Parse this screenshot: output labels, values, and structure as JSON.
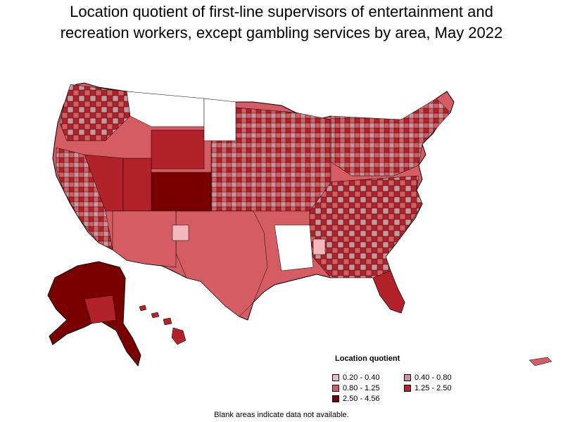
{
  "title_lines": [
    "Location quotient of first-line supervisors of entertainment and",
    "recreation workers, except gambling services by area, May 2022"
  ],
  "legend": {
    "title": "Location quotient",
    "items": [
      {
        "label": "0.20 - 0.40",
        "color": "#f4b8bc"
      },
      {
        "label": "0.40 - 0.80",
        "color": "#c8969b"
      },
      {
        "label": "0.80 - 1.25",
        "color": "#d45c62"
      },
      {
        "label": "1.25 - 2.50",
        "color": "#b3222a"
      },
      {
        "label": "2.50 - 4.56",
        "color": "#7a0000"
      }
    ]
  },
  "footnote": "Blank areas indicate data not available.",
  "colors": {
    "no_data": "#ffffff",
    "boundary": "#000000"
  }
}
